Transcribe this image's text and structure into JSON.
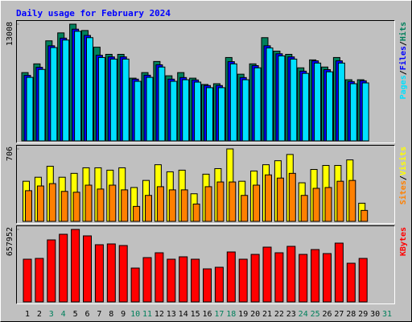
{
  "chart_data": [
    {
      "type": "bar",
      "title": "Daily usage for February 2024",
      "categories": [
        "1",
        "2",
        "3",
        "4",
        "5",
        "6",
        "7",
        "8",
        "9",
        "10",
        "11",
        "12",
        "13",
        "14",
        "15",
        "16",
        "17",
        "18",
        "19",
        "20",
        "21",
        "22",
        "23",
        "24",
        "25",
        "26",
        "27",
        "28",
        "29",
        "30",
        "31"
      ],
      "series": [
        {
          "name": "Hits",
          "color": "#00805c",
          "values": [
            7610,
            8583,
            11150,
            12035,
            13008,
            12300,
            10442,
            9645,
            9645,
            6990,
            7610,
            8849,
            7256,
            7610,
            6990,
            6283,
            6371,
            9291,
            7433,
            8583,
            11504,
            10000,
            9645,
            8141,
            9026,
            8230,
            9291,
            6814,
            6814,
            null,
            null
          ]
        },
        {
          "name": "Files",
          "color": "#0000ff",
          "values": [
            7300,
            8200,
            10600,
            11450,
            12450,
            11750,
            9540,
            9360,
            9360,
            6880,
            7320,
            8480,
            6880,
            7060,
            6790,
            6170,
            6170,
            8830,
            7060,
            8390,
            10600,
            9710,
            9360,
            7770,
            8920,
            7940,
            8920,
            6610,
            6700,
            null,
            null
          ]
        },
        {
          "name": "Pages",
          "color": "#00e0ff",
          "values": [
            7079,
            7964,
            10400,
            11238,
            12212,
            11504,
            9291,
            9115,
            9115,
            6637,
            7079,
            8230,
            6637,
            6814,
            6548,
            5929,
            5929,
            8583,
            6814,
            8141,
            10353,
            9469,
            9115,
            7522,
            8672,
            7699,
            8672,
            6371,
            6460,
            null,
            null
          ]
        }
      ],
      "ylim": [
        0,
        13008
      ],
      "yticks": [
        13008
      ],
      "legend_separator": "/"
    },
    {
      "type": "bar",
      "categories": [
        "1",
        "2",
        "3",
        "4",
        "5",
        "6",
        "7",
        "8",
        "9",
        "10",
        "11",
        "12",
        "13",
        "14",
        "15",
        "16",
        "17",
        "18",
        "19",
        "20",
        "21",
        "22",
        "23",
        "24",
        "25",
        "26",
        "27",
        "28",
        "29",
        "30",
        "31"
      ],
      "series": [
        {
          "name": "Visits",
          "color": "#ffff00",
          "values": [
            391,
            430,
            537,
            430,
            468,
            522,
            522,
            499,
            522,
            330,
            399,
            552,
            483,
            499,
            269,
            460,
            514,
            706,
            391,
            491,
            552,
            591,
            652,
            376,
            506,
            545,
            545,
            599,
            177,
            null,
            null
          ]
        },
        {
          "name": "Sites",
          "color": "#ff8000",
          "values": [
            299,
            345,
            368,
            292,
            284,
            353,
            315,
            353,
            307,
            146,
            253,
            338,
            307,
            307,
            169,
            338,
            384,
            384,
            253,
            353,
            453,
            422,
            468,
            253,
            322,
            330,
            391,
            399,
            107,
            null,
            null
          ]
        }
      ],
      "ylim": [
        0,
        706
      ],
      "yticks": [
        706
      ],
      "legend_separator": "/"
    },
    {
      "type": "bar",
      "categories": [
        "1",
        "2",
        "3",
        "4",
        "5",
        "6",
        "7",
        "8",
        "9",
        "10",
        "11",
        "12",
        "13",
        "14",
        "15",
        "16",
        "17",
        "18",
        "19",
        "20",
        "21",
        "22",
        "23",
        "24",
        "25",
        "26",
        "27",
        "28",
        "29",
        "30",
        "31"
      ],
      "category_colors": [
        "#000000",
        "#000000",
        "#00805c",
        "#00805c",
        "#000000",
        "#000000",
        "#000000",
        "#000000",
        "#000000",
        "#00805c",
        "#00805c",
        "#000000",
        "#000000",
        "#000000",
        "#000000",
        "#000000",
        "#00805c",
        "#00805c",
        "#000000",
        "#000000",
        "#000000",
        "#000000",
        "#000000",
        "#00805c",
        "#00805c",
        "#000000",
        "#000000",
        "#000000",
        "#000000",
        "#000000",
        "#00805c"
      ],
      "series": [
        {
          "name": "KBytes",
          "color": "#ff0000",
          "values": [
            387472,
            394771,
            562925,
            614088,
            657952,
            599469,
            519053,
            526362,
            511741,
            307044,
            402082,
            445950,
            387472,
            409393,
            387472,
            299734,
            314355,
            453260,
            387472,
            431328,
            497120,
            445950,
            504431,
            431328,
            475188,
            438639,
            533672,
            350908,
            394771,
            null,
            null
          ]
        }
      ],
      "ylim": [
        0,
        657952
      ],
      "yticks": [
        657952
      ]
    }
  ]
}
